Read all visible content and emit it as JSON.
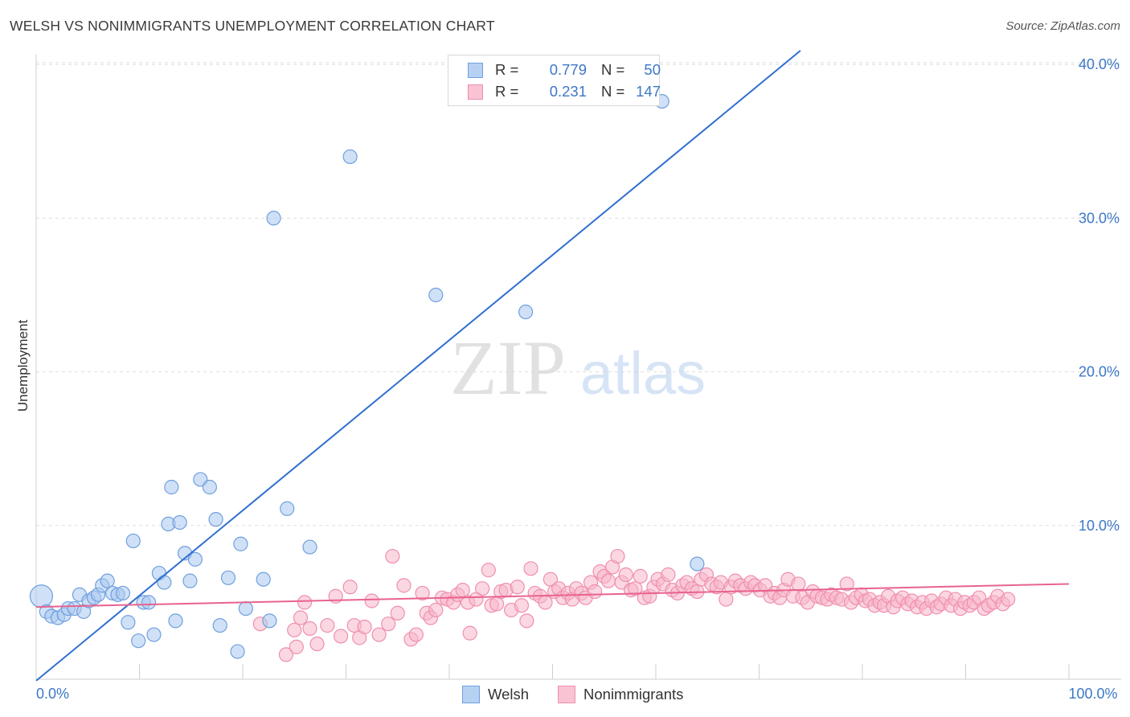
{
  "header": {
    "title": "WELSH VS NONIMMIGRANTS UNEMPLOYMENT CORRELATION CHART",
    "source": "Source: ZipAtlas.com"
  },
  "watermark": {
    "zip": "ZIP",
    "atlas": "atlas"
  },
  "legend": {
    "rows": [
      {
        "r_label": "R =",
        "r_value": "0.779",
        "n_label": "N =",
        "n_value": "50"
      },
      {
        "r_label": "R =",
        "r_value": "0.231",
        "n_label": "N =",
        "n_value": "147"
      }
    ]
  },
  "bottom_legend": {
    "series_a": "Welsh",
    "series_b": "Nonimmigrants"
  },
  "colors": {
    "welsh_fill": "#a9c8f0",
    "welsh_stroke": "#6fa0de",
    "welsh_line": "#2f6fd0",
    "nonimm_fill": "#f7b6ca",
    "nonimm_stroke": "#ef8fae",
    "nonimm_line": "#e8638f",
    "tick_label": "#3d78c7",
    "grid": "#dddddd"
  },
  "chart_data": {
    "type": "scatter",
    "title": "WELSH VS NONIMMIGRANTS UNEMPLOYMENT CORRELATION CHART",
    "xlabel": "",
    "ylabel": "Unemployment",
    "xlim": [
      0,
      100
    ],
    "ylim": [
      0,
      42
    ],
    "x_tick_labels": [
      {
        "value": 0,
        "label": "0.0%"
      },
      {
        "value": 100,
        "label": "100.0%"
      }
    ],
    "y_tick_labels": [
      {
        "value": 10,
        "label": "10.0%"
      },
      {
        "value": 20,
        "label": "20.0%"
      },
      {
        "value": 30,
        "label": "30.0%"
      },
      {
        "value": 40,
        "label": "40.0%"
      }
    ],
    "x_minor_ticks": [
      10,
      20,
      30,
      40,
      50,
      60,
      70,
      80,
      90,
      100
    ],
    "grid": true,
    "series": [
      {
        "name": "Welsh",
        "r": 0.779,
        "n": 50,
        "trend": {
          "x0": 0,
          "y0": -0.1,
          "x1": 74,
          "y1": 40.9
        },
        "points": [
          [
            0.5,
            5.4
          ],
          [
            1.0,
            4.4
          ],
          [
            1.5,
            4.1
          ],
          [
            2.1,
            4.0
          ],
          [
            2.7,
            4.2
          ],
          [
            3.1,
            4.6
          ],
          [
            3.7,
            4.6
          ],
          [
            4.2,
            5.5
          ],
          [
            4.6,
            4.4
          ],
          [
            5.1,
            5.1
          ],
          [
            5.6,
            5.3
          ],
          [
            6.0,
            5.5
          ],
          [
            6.4,
            6.1
          ],
          [
            6.9,
            6.4
          ],
          [
            7.4,
            5.6
          ],
          [
            7.9,
            5.5
          ],
          [
            8.4,
            5.6
          ],
          [
            8.9,
            3.7
          ],
          [
            9.4,
            9.0
          ],
          [
            9.9,
            2.5
          ],
          [
            10.4,
            5.0
          ],
          [
            10.9,
            5.0
          ],
          [
            11.4,
            2.9
          ],
          [
            11.9,
            6.9
          ],
          [
            12.4,
            6.3
          ],
          [
            12.8,
            10.1
          ],
          [
            13.1,
            12.5
          ],
          [
            13.5,
            3.8
          ],
          [
            13.9,
            10.2
          ],
          [
            14.4,
            8.2
          ],
          [
            14.9,
            6.4
          ],
          [
            15.4,
            7.8
          ],
          [
            15.9,
            13.0
          ],
          [
            16.8,
            12.5
          ],
          [
            17.4,
            10.4
          ],
          [
            17.8,
            3.5
          ],
          [
            18.6,
            6.6
          ],
          [
            19.5,
            1.8
          ],
          [
            19.8,
            8.8
          ],
          [
            20.3,
            4.6
          ],
          [
            22.0,
            6.5
          ],
          [
            22.6,
            3.8
          ],
          [
            23.0,
            30.0
          ],
          [
            24.3,
            11.1
          ],
          [
            26.5,
            8.6
          ],
          [
            30.4,
            34.0
          ],
          [
            38.7,
            25.0
          ],
          [
            47.4,
            23.9
          ],
          [
            60.6,
            37.6
          ],
          [
            64.0,
            7.5
          ]
        ]
      },
      {
        "name": "Nonimmigrants",
        "r": 0.231,
        "n": 147,
        "trend": {
          "x0": 0,
          "y0": 4.7,
          "x1": 100,
          "y1": 6.2
        },
        "points": [
          [
            21.7,
            3.6
          ],
          [
            24.2,
            1.6
          ],
          [
            25.0,
            3.2
          ],
          [
            25.2,
            2.1
          ],
          [
            25.6,
            4.0
          ],
          [
            26.0,
            5.0
          ],
          [
            26.5,
            3.3
          ],
          [
            27.2,
            2.3
          ],
          [
            28.2,
            3.5
          ],
          [
            29.0,
            5.4
          ],
          [
            29.5,
            2.8
          ],
          [
            30.4,
            6.0
          ],
          [
            30.8,
            3.5
          ],
          [
            31.3,
            2.7
          ],
          [
            31.8,
            3.4
          ],
          [
            32.5,
            5.1
          ],
          [
            33.2,
            2.9
          ],
          [
            34.1,
            3.6
          ],
          [
            34.5,
            8.0
          ],
          [
            35.0,
            4.3
          ],
          [
            35.6,
            6.1
          ],
          [
            36.3,
            2.6
          ],
          [
            36.8,
            2.9
          ],
          [
            37.4,
            5.6
          ],
          [
            37.8,
            4.3
          ],
          [
            38.2,
            4.0
          ],
          [
            38.7,
            4.5
          ],
          [
            39.3,
            5.3
          ],
          [
            39.8,
            5.2
          ],
          [
            40.4,
            5.0
          ],
          [
            40.8,
            5.5
          ],
          [
            41.3,
            5.8
          ],
          [
            41.8,
            5.0
          ],
          [
            42.0,
            3.0
          ],
          [
            42.6,
            5.2
          ],
          [
            43.2,
            5.9
          ],
          [
            43.8,
            7.1
          ],
          [
            44.1,
            4.8
          ],
          [
            44.6,
            4.9
          ],
          [
            45.0,
            5.7
          ],
          [
            45.5,
            5.8
          ],
          [
            46.0,
            4.5
          ],
          [
            46.6,
            6.0
          ],
          [
            47.0,
            4.8
          ],
          [
            47.5,
            3.8
          ],
          [
            47.9,
            7.2
          ],
          [
            48.3,
            5.6
          ],
          [
            48.8,
            5.4
          ],
          [
            49.3,
            5.0
          ],
          [
            49.8,
            6.5
          ],
          [
            50.2,
            5.7
          ],
          [
            50.6,
            5.9
          ],
          [
            51.0,
            5.3
          ],
          [
            51.5,
            5.6
          ],
          [
            51.9,
            5.2
          ],
          [
            52.3,
            5.9
          ],
          [
            52.8,
            5.6
          ],
          [
            53.2,
            5.3
          ],
          [
            53.7,
            6.3
          ],
          [
            54.1,
            5.7
          ],
          [
            54.6,
            7.0
          ],
          [
            55.0,
            6.7
          ],
          [
            55.4,
            6.4
          ],
          [
            55.8,
            7.3
          ],
          [
            56.3,
            8.0
          ],
          [
            56.7,
            6.3
          ],
          [
            57.1,
            6.8
          ],
          [
            57.6,
            5.8
          ],
          [
            58.0,
            5.9
          ],
          [
            58.5,
            6.7
          ],
          [
            58.9,
            5.3
          ],
          [
            59.4,
            5.4
          ],
          [
            59.8,
            6.0
          ],
          [
            60.2,
            6.5
          ],
          [
            60.7,
            6.2
          ],
          [
            61.2,
            6.8
          ],
          [
            61.6,
            5.8
          ],
          [
            62.1,
            5.6
          ],
          [
            62.6,
            6.1
          ],
          [
            63.0,
            6.3
          ],
          [
            63.5,
            5.9
          ],
          [
            64.0,
            5.7
          ],
          [
            64.4,
            6.5
          ],
          [
            64.9,
            6.8
          ],
          [
            65.4,
            6.2
          ],
          [
            65.9,
            6.0
          ],
          [
            66.3,
            6.3
          ],
          [
            66.8,
            5.2
          ],
          [
            67.3,
            6.0
          ],
          [
            67.7,
            6.4
          ],
          [
            68.2,
            6.1
          ],
          [
            68.7,
            5.9
          ],
          [
            69.2,
            6.3
          ],
          [
            69.6,
            6.1
          ],
          [
            70.1,
            5.8
          ],
          [
            70.6,
            6.1
          ],
          [
            71.1,
            5.4
          ],
          [
            71.5,
            5.6
          ],
          [
            72.0,
            5.3
          ],
          [
            72.4,
            5.8
          ],
          [
            72.8,
            6.5
          ],
          [
            73.3,
            5.4
          ],
          [
            73.8,
            6.2
          ],
          [
            74.2,
            5.3
          ],
          [
            74.7,
            5.0
          ],
          [
            75.2,
            5.7
          ],
          [
            75.6,
            5.4
          ],
          [
            76.1,
            5.3
          ],
          [
            76.6,
            5.2
          ],
          [
            77.0,
            5.5
          ],
          [
            77.5,
            5.3
          ],
          [
            78.0,
            5.2
          ],
          [
            78.5,
            6.2
          ],
          [
            78.9,
            5.0
          ],
          [
            79.4,
            5.3
          ],
          [
            79.9,
            5.5
          ],
          [
            80.3,
            5.1
          ],
          [
            80.7,
            5.2
          ],
          [
            81.2,
            4.8
          ],
          [
            81.7,
            5.0
          ],
          [
            82.1,
            4.8
          ],
          [
            82.5,
            5.4
          ],
          [
            83.0,
            4.7
          ],
          [
            83.4,
            5.1
          ],
          [
            83.9,
            5.3
          ],
          [
            84.4,
            4.9
          ],
          [
            84.8,
            5.1
          ],
          [
            85.3,
            4.7
          ],
          [
            85.8,
            5.0
          ],
          [
            86.2,
            4.6
          ],
          [
            86.7,
            5.1
          ],
          [
            87.2,
            4.7
          ],
          [
            87.6,
            4.9
          ],
          [
            88.1,
            5.3
          ],
          [
            88.6,
            4.8
          ],
          [
            89.0,
            5.2
          ],
          [
            89.5,
            4.6
          ],
          [
            89.9,
            5.0
          ],
          [
            90.4,
            4.8
          ],
          [
            90.8,
            5.0
          ],
          [
            91.3,
            5.3
          ],
          [
            91.8,
            4.6
          ],
          [
            92.2,
            4.8
          ],
          [
            92.7,
            5.0
          ],
          [
            93.1,
            5.4
          ],
          [
            93.6,
            4.9
          ],
          [
            94.1,
            5.2
          ]
        ]
      }
    ]
  }
}
